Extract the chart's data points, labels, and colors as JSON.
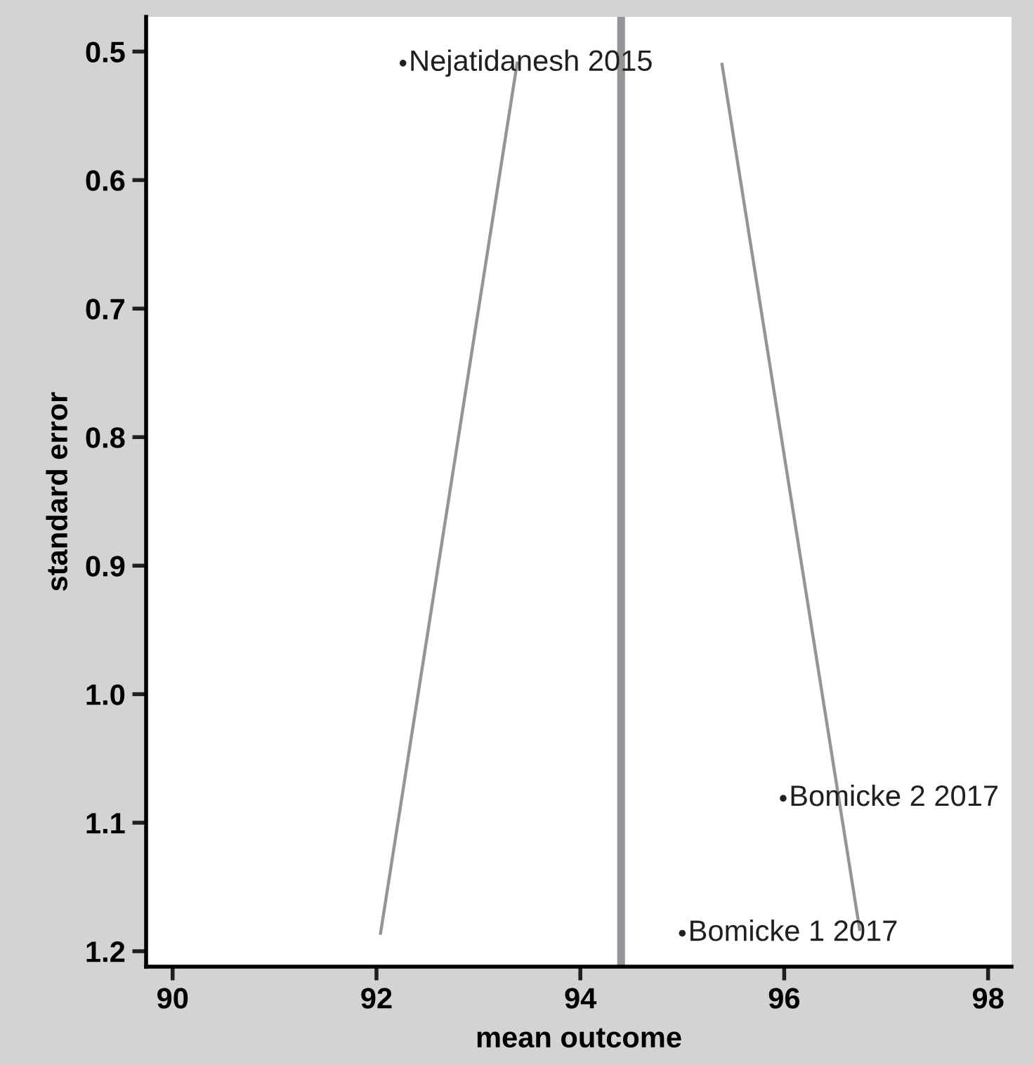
{
  "chart_data": {
    "type": "scatter",
    "xlabel": "mean outcome",
    "ylabel": "standard error",
    "xlim": [
      89.74,
      98.23
    ],
    "xticks": [
      90,
      92,
      94,
      96,
      98
    ],
    "ylim": [
      1.212,
      0.473
    ],
    "yticks": [
      0.5,
      0.6,
      0.7,
      0.8,
      0.9,
      {
        "value": 1,
        "label": "1.0"
      },
      1.1,
      1.2
    ],
    "grid": false,
    "legend": false,
    "series": [
      {
        "marker": "circle",
        "color": "#231f20",
        "x": [
          92.26,
          95.99,
          95.0
        ],
        "values": [
          0.509,
          1.081,
          1.186
        ]
      },
      {
        "type": "line",
        "color": "#939598",
        "line_style": "solid",
        "x": [
          92.04,
          93.38
        ],
        "values": [
          1.186,
          0.509
        ]
      },
      {
        "type": "line",
        "color": "#939598",
        "line_style": "solid",
        "x": [
          95.39,
          96.74
        ],
        "values": [
          0.51,
          1.183
        ]
      }
    ],
    "ref_lines": [
      {
        "axis": "x",
        "value": 94.4,
        "color": "#939598"
      }
    ],
    "annotations": [
      {
        "text": "Nejatidanesh 2015",
        "x": 92.26,
        "y": 0.509
      },
      {
        "text": "Bomicke 2 2017",
        "x": 95.99,
        "y": 1.081
      },
      {
        "text": "Bomicke 1 2017",
        "x": 95.0,
        "y": 1.186
      }
    ]
  }
}
